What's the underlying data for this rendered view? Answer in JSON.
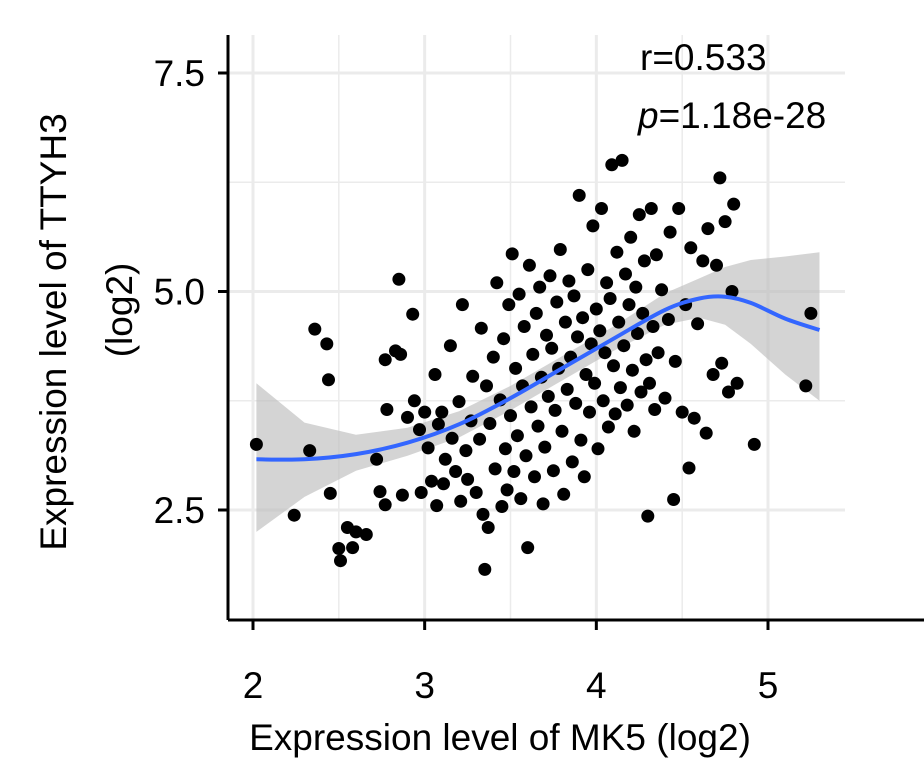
{
  "chart_data": {
    "type": "scatter",
    "xlabel": "Expression level of MK5 (log2)",
    "ylabel_line1": "Expression level of TTYH3",
    "ylabel_line2": "(log2)",
    "xlim": [
      1.98,
      5.45
    ],
    "ylim": [
      1.65,
      7.9
    ],
    "xticks": [
      2,
      3,
      4,
      5
    ],
    "yticks": [
      2.5,
      5.0,
      7.5
    ],
    "xtick_labels": [
      "2",
      "3",
      "4",
      "5"
    ],
    "ytick_labels": [
      "2.5",
      "5.0",
      "7.5"
    ],
    "x_minor_gridlines": [
      2.5,
      3.5,
      4.5
    ],
    "y_minor_gridlines": [
      3.75,
      6.25
    ],
    "grid": true,
    "annotation": {
      "r_text": "r=0.533",
      "p_symbol": "p",
      "p_value": "=1.18e-28"
    },
    "colors": {
      "points": "#000000",
      "smooth_line": "#3366ff",
      "ci_band": "#bdbdbd",
      "grid": "#ebebeb"
    },
    "smooth": {
      "x": [
        2.02,
        2.3,
        2.6,
        2.9,
        3.2,
        3.5,
        3.8,
        4.1,
        4.4,
        4.6,
        4.75,
        4.9,
        5.1,
        5.3
      ],
      "y": [
        3.08,
        3.08,
        3.14,
        3.27,
        3.48,
        3.78,
        4.12,
        4.46,
        4.79,
        4.92,
        4.94,
        4.87,
        4.69,
        4.56
      ],
      "y_lower": [
        2.25,
        2.65,
        2.95,
        3.12,
        3.33,
        3.64,
        3.98,
        4.32,
        4.62,
        4.7,
        4.62,
        4.4,
        4.05,
        3.75
      ],
      "y_upper": [
        3.95,
        3.5,
        3.36,
        3.44,
        3.63,
        3.92,
        4.26,
        4.6,
        4.98,
        5.15,
        5.28,
        5.36,
        5.4,
        5.45
      ]
    },
    "points": [
      [
        2.02,
        3.25
      ],
      [
        2.24,
        2.44
      ],
      [
        2.33,
        3.18
      ],
      [
        2.36,
        4.57
      ],
      [
        2.43,
        4.4
      ],
      [
        2.44,
        3.99
      ],
      [
        2.45,
        2.69
      ],
      [
        2.5,
        2.06
      ],
      [
        2.51,
        1.92
      ],
      [
        2.55,
        2.3
      ],
      [
        2.58,
        2.07
      ],
      [
        2.6,
        2.25
      ],
      [
        2.66,
        2.22
      ],
      [
        2.72,
        3.08
      ],
      [
        2.74,
        2.71
      ],
      [
        2.77,
        2.56
      ],
      [
        2.77,
        4.22
      ],
      [
        2.78,
        3.65
      ],
      [
        2.83,
        4.32
      ],
      [
        2.85,
        5.14
      ],
      [
        2.86,
        4.28
      ],
      [
        2.87,
        2.67
      ],
      [
        2.9,
        3.56
      ],
      [
        2.93,
        4.74
      ],
      [
        2.94,
        3.75
      ],
      [
        2.97,
        3.42
      ],
      [
        2.98,
        2.7
      ],
      [
        3.0,
        3.62
      ],
      [
        3.02,
        3.21
      ],
      [
        3.04,
        2.83
      ],
      [
        3.06,
        4.05
      ],
      [
        3.07,
        2.55
      ],
      [
        3.08,
        3.48
      ],
      [
        3.1,
        3.62
      ],
      [
        3.11,
        2.8
      ],
      [
        3.12,
        3.08
      ],
      [
        3.15,
        4.38
      ],
      [
        3.16,
        3.32
      ],
      [
        3.18,
        2.94
      ],
      [
        3.2,
        3.74
      ],
      [
        3.21,
        2.6
      ],
      [
        3.22,
        4.85
      ],
      [
        3.24,
        3.18
      ],
      [
        3.25,
        2.85
      ],
      [
        3.27,
        3.52
      ],
      [
        3.28,
        4.03
      ],
      [
        3.3,
        2.7
      ],
      [
        3.32,
        3.31
      ],
      [
        3.33,
        4.58
      ],
      [
        3.34,
        2.45
      ],
      [
        3.35,
        1.82
      ],
      [
        3.36,
        3.92
      ],
      [
        3.37,
        2.3
      ],
      [
        3.38,
        3.49
      ],
      [
        3.4,
        4.25
      ],
      [
        3.41,
        2.97
      ],
      [
        3.42,
        5.1
      ],
      [
        3.44,
        3.76
      ],
      [
        3.45,
        2.54
      ],
      [
        3.46,
        4.46
      ],
      [
        3.47,
        3.2
      ],
      [
        3.48,
        2.73
      ],
      [
        3.49,
        4.85
      ],
      [
        3.5,
        3.58
      ],
      [
        3.51,
        5.43
      ],
      [
        3.52,
        2.94
      ],
      [
        3.53,
        4.12
      ],
      [
        3.54,
        3.35
      ],
      [
        3.55,
        4.97
      ],
      [
        3.56,
        2.63
      ],
      [
        3.57,
        3.92
      ],
      [
        3.58,
        4.6
      ],
      [
        3.59,
        3.12
      ],
      [
        3.6,
        2.07
      ],
      [
        3.61,
        5.3
      ],
      [
        3.62,
        3.68
      ],
      [
        3.63,
        4.28
      ],
      [
        3.64,
        2.88
      ],
      [
        3.65,
        4.75
      ],
      [
        3.66,
        3.46
      ],
      [
        3.67,
        5.05
      ],
      [
        3.68,
        4.02
      ],
      [
        3.69,
        2.57
      ],
      [
        3.7,
        3.22
      ],
      [
        3.71,
        4.5
      ],
      [
        3.72,
        3.8
      ],
      [
        3.73,
        5.18
      ],
      [
        3.74,
        4.35
      ],
      [
        3.75,
        2.95
      ],
      [
        3.76,
        3.64
      ],
      [
        3.77,
        4.88
      ],
      [
        3.78,
        4.12
      ],
      [
        3.79,
        5.48
      ],
      [
        3.8,
        3.4
      ],
      [
        3.81,
        2.68
      ],
      [
        3.82,
        4.65
      ],
      [
        3.83,
        3.88
      ],
      [
        3.84,
        5.12
      ],
      [
        3.85,
        4.25
      ],
      [
        3.86,
        3.05
      ],
      [
        3.87,
        4.95
      ],
      [
        3.88,
        3.72
      ],
      [
        3.89,
        4.48
      ],
      [
        3.9,
        6.1
      ],
      [
        3.91,
        3.3
      ],
      [
        3.92,
        4.7
      ],
      [
        3.93,
        2.88
      ],
      [
        3.94,
        4.05
      ],
      [
        3.95,
        5.25
      ],
      [
        3.96,
        3.62
      ],
      [
        3.97,
        4.4
      ],
      [
        3.98,
        5.75
      ],
      [
        3.99,
        3.95
      ],
      [
        4.0,
        4.8
      ],
      [
        4.01,
        3.2
      ],
      [
        4.02,
        4.55
      ],
      [
        4.03,
        5.95
      ],
      [
        4.04,
        3.75
      ],
      [
        4.05,
        4.3
      ],
      [
        4.06,
        5.1
      ],
      [
        4.07,
        3.45
      ],
      [
        4.08,
        4.92
      ],
      [
        4.09,
        6.45
      ],
      [
        4.1,
        4.15
      ],
      [
        4.11,
        3.6
      ],
      [
        4.12,
        5.45
      ],
      [
        4.13,
        4.65
      ],
      [
        4.14,
        3.9
      ],
      [
        4.15,
        6.5
      ],
      [
        4.16,
        4.38
      ],
      [
        4.17,
        5.2
      ],
      [
        4.18,
        3.7
      ],
      [
        4.19,
        4.85
      ],
      [
        4.2,
        5.62
      ],
      [
        4.21,
        4.1
      ],
      [
        4.22,
        3.4
      ],
      [
        4.23,
        5.05
      ],
      [
        4.24,
        4.52
      ],
      [
        4.25,
        5.88
      ],
      [
        4.26,
        3.85
      ],
      [
        4.27,
        4.75
      ],
      [
        4.28,
        5.35
      ],
      [
        4.29,
        4.22
      ],
      [
        4.3,
        2.43
      ],
      [
        4.31,
        3.95
      ],
      [
        4.32,
        5.95
      ],
      [
        4.33,
        4.6
      ],
      [
        4.34,
        3.65
      ],
      [
        4.35,
        5.42
      ],
      [
        4.36,
        4.3
      ],
      [
        4.38,
        5.02
      ],
      [
        4.4,
        3.78
      ],
      [
        4.42,
        4.68
      ],
      [
        4.43,
        5.68
      ],
      [
        4.45,
        2.62
      ],
      [
        4.46,
        4.2
      ],
      [
        4.48,
        5.95
      ],
      [
        4.5,
        3.62
      ],
      [
        4.52,
        4.85
      ],
      [
        4.54,
        2.98
      ],
      [
        4.55,
        5.5
      ],
      [
        4.57,
        3.55
      ],
      [
        4.59,
        4.63
      ],
      [
        4.62,
        5.35
      ],
      [
        4.64,
        3.38
      ],
      [
        4.65,
        5.72
      ],
      [
        4.68,
        4.05
      ],
      [
        4.7,
        5.3
      ],
      [
        4.72,
        6.3
      ],
      [
        4.73,
        4.18
      ],
      [
        4.75,
        5.8
      ],
      [
        4.77,
        3.85
      ],
      [
        4.79,
        5.0
      ],
      [
        4.8,
        6.0
      ],
      [
        4.82,
        3.95
      ],
      [
        4.92,
        3.25
      ],
      [
        5.22,
        3.92
      ],
      [
        5.25,
        4.75
      ]
    ]
  }
}
